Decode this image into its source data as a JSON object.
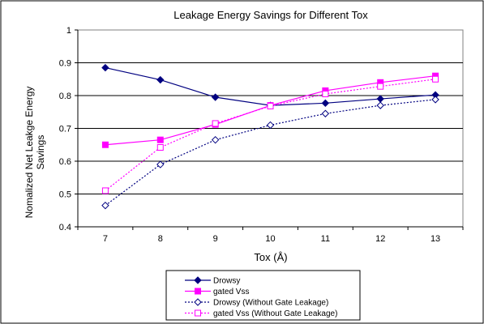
{
  "chart_data": {
    "type": "line",
    "title": "Leakage Energy Savings for Different Tox",
    "xlabel": "Tox (Å)",
    "ylabel_lines": [
      "Nomalized Net Leakge Energy",
      "Savings"
    ],
    "x": [
      7,
      8,
      9,
      10,
      11,
      12,
      13
    ],
    "ylim": [
      0.4,
      1
    ],
    "y_ticks": [
      "0.4",
      "0.5",
      "0.6",
      "0.7",
      "0.8",
      "0.9",
      "1"
    ],
    "grid": "horizontal major lines at 0.5, 0.6, 0.7, 0.8, 0.9",
    "legend_position": "bottom",
    "series": [
      {
        "name": "Drowsy",
        "values": [
          0.885,
          0.848,
          0.795,
          0.77,
          0.777,
          0.79,
          0.802
        ],
        "color": "#000080",
        "marker": "diamond-filled",
        "dash": "solid"
      },
      {
        "name": "gated Vss",
        "values": [
          0.65,
          0.665,
          0.712,
          0.77,
          0.815,
          0.84,
          0.86
        ],
        "color": "#FF00FF",
        "marker": "square-filled",
        "dash": "solid"
      },
      {
        "name": "Drowsy (Without Gate Leakage)",
        "values": [
          0.465,
          0.59,
          0.665,
          0.71,
          0.745,
          0.77,
          0.788
        ],
        "color": "#000080",
        "marker": "diamond-open",
        "dash": "dotted"
      },
      {
        "name": "gated Vss (Without Gate Leakage)",
        "values": [
          0.51,
          0.642,
          0.715,
          0.768,
          0.805,
          0.828,
          0.85
        ],
        "color": "#FF00FF",
        "marker": "square-open",
        "dash": "dotted"
      }
    ]
  }
}
